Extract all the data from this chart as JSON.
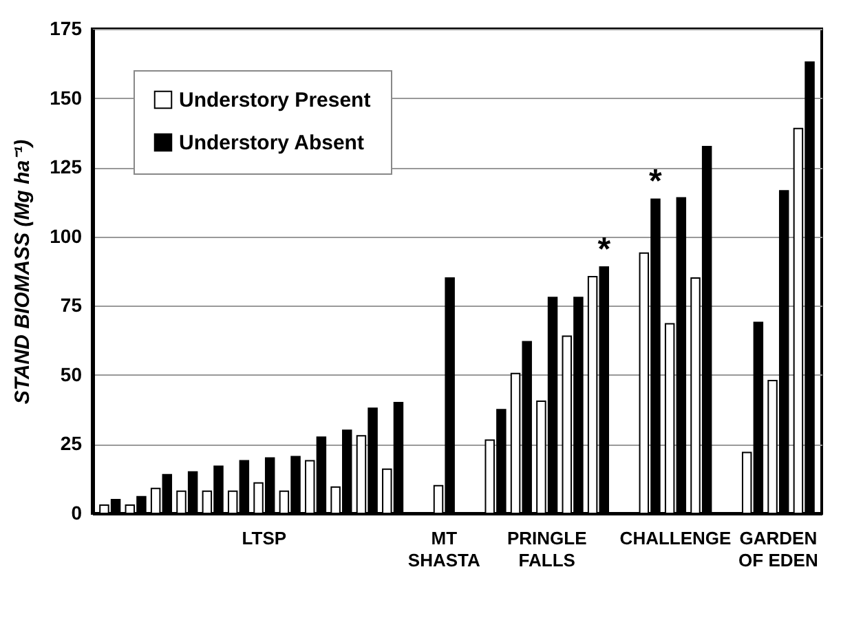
{
  "chart_data": {
    "type": "bar",
    "ylabel": "STAND BIOMASS (Mg ha⁻¹)",
    "categories": [
      null,
      null,
      null,
      null,
      null,
      null,
      "LTSP",
      null,
      null,
      null,
      null,
      null,
      null,
      "MT\nSHASTA",
      null,
      null,
      null,
      "PRINGLE\nFALLS",
      null,
      null,
      null,
      null,
      "CHALLENGE",
      null,
      null,
      null,
      "GARDEN\nOF EDEN",
      null
    ],
    "series": [
      {
        "name": "Understory Present",
        "color": "#ffffff",
        "values": [
          3,
          3,
          9,
          8,
          8,
          8,
          11,
          8,
          19,
          9.5,
          28,
          16,
          null,
          10,
          null,
          26.5,
          50.5,
          40.5,
          64,
          85.5,
          null,
          94,
          68.5,
          85,
          null,
          22,
          48,
          139
        ]
      },
      {
        "name": "Understory Absent",
        "color": "#000000",
        "values": [
          5,
          6,
          14,
          15,
          17,
          19,
          20,
          20.5,
          27.5,
          30,
          38,
          40,
          null,
          85,
          null,
          37.5,
          62,
          78,
          78,
          89,
          null,
          113.5,
          114,
          132.5,
          null,
          69,
          116.5,
          163
        ],
        "value_labels": [
          null,
          null,
          null,
          null,
          null,
          null,
          null,
          null,
          null,
          null,
          null,
          null,
          null,
          null,
          null,
          null,
          null,
          null,
          null,
          "*",
          null,
          "*",
          null,
          null,
          null,
          null,
          null,
          null
        ]
      }
    ],
    "ylim": [
      0,
      175
    ],
    "yticks": [
      0,
      25,
      50,
      75,
      100,
      125,
      150,
      175
    ],
    "grid": "y",
    "legend": "top left"
  }
}
